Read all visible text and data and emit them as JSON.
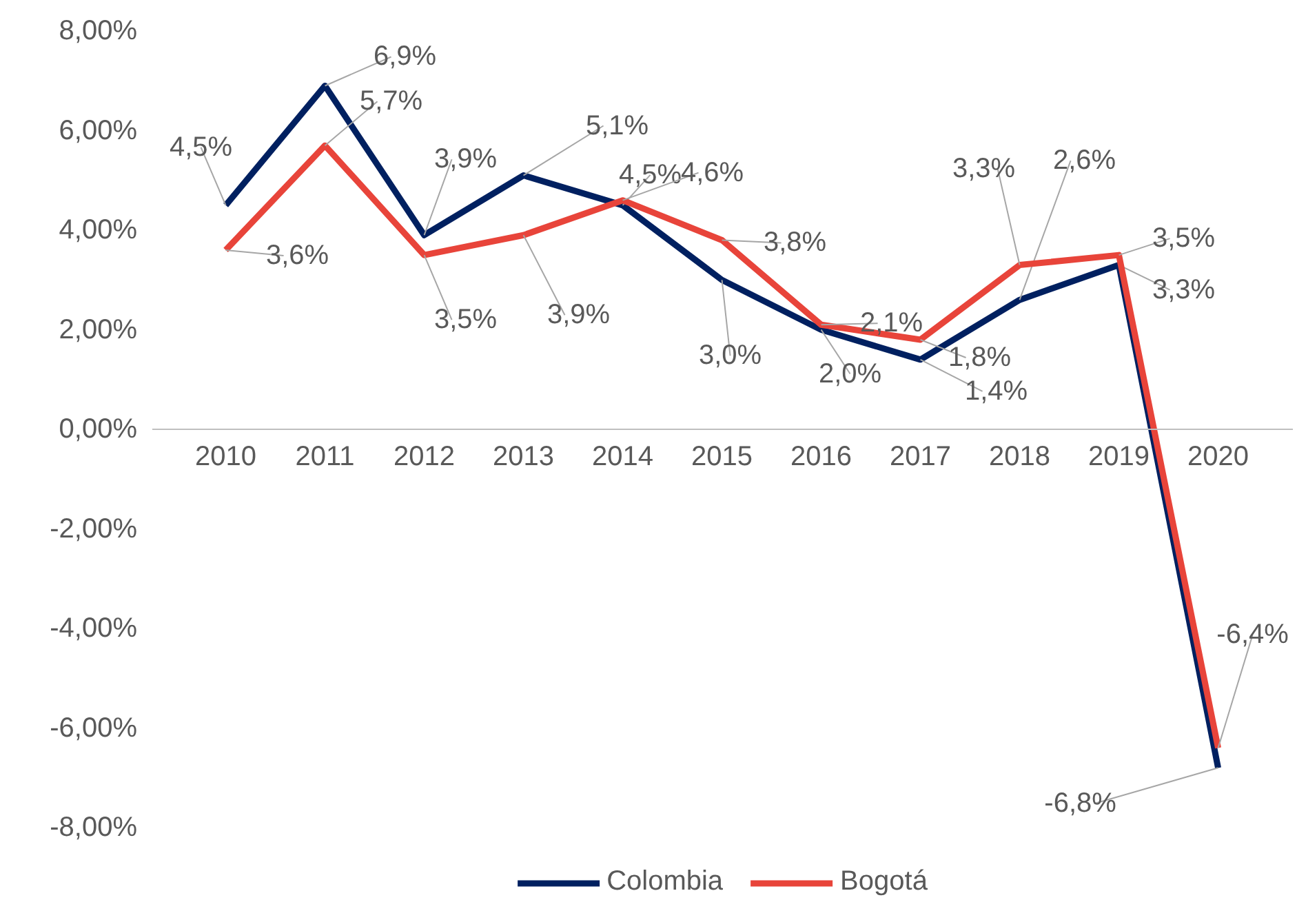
{
  "chart_data": {
    "type": "line",
    "categories": [
      "2010",
      "2011",
      "2012",
      "2013",
      "2014",
      "2015",
      "2016",
      "2017",
      "2018",
      "2019",
      "2020"
    ],
    "series": [
      {
        "name": "Colombia",
        "color": "#002060",
        "values": [
          4.5,
          6.9,
          3.9,
          5.1,
          4.5,
          3.0,
          2.0,
          1.4,
          2.6,
          3.3,
          -6.8
        ],
        "value_labels": [
          "4,5%",
          "6,9%",
          "3,9%",
          "5,1%",
          "4,5%",
          "3,0%",
          "2,0%",
          "1,4%",
          "2,6%",
          "3,3%",
          "-6,8%"
        ]
      },
      {
        "name": "Bogotá",
        "color": "#e8443a",
        "values": [
          3.6,
          5.7,
          3.5,
          3.9,
          4.6,
          3.8,
          2.1,
          1.8,
          3.3,
          3.5,
          -6.4
        ],
        "value_labels": [
          "3,6%",
          "5,7%",
          "3,5%",
          "3,9%",
          "4,6%",
          "3,8%",
          "2,1%",
          "1,8%",
          "3,3%",
          "3,5%",
          "-6,4%"
        ]
      }
    ],
    "ylim": [
      -8,
      8
    ],
    "yticks": [
      {
        "value": -8,
        "label": "-8,00%"
      },
      {
        "value": -6,
        "label": "-6,00%"
      },
      {
        "value": -4,
        "label": "-4,00%"
      },
      {
        "value": -2,
        "label": "-2,00%"
      },
      {
        "value": 0,
        "label": "0,00%"
      },
      {
        "value": 2,
        "label": "2,00%"
      },
      {
        "value": 4,
        "label": "4,00%"
      },
      {
        "value": 6,
        "label": "6,00%"
      },
      {
        "value": 8,
        "label": "8,00%"
      }
    ],
    "grid": false,
    "legend": "bottom",
    "marker": "none",
    "line_style": "solid"
  }
}
